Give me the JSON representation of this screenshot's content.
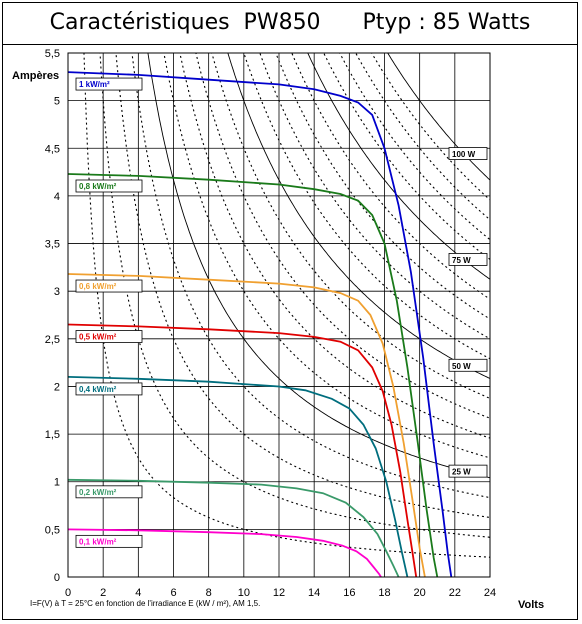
{
  "chart_data": {
    "type": "line",
    "title": "Caractéristiques  PW850      Ptyp : 85 Watts",
    "xlabel": "Volts",
    "ylabel": "Ampères",
    "footnote": "I=F(V) à T = 25°C  en fonction de l'irradiance E (kW / m²), AM 1,5.",
    "xlim": [
      0,
      24
    ],
    "ylim": [
      0,
      5.5
    ],
    "xticks": [
      0,
      2,
      4,
      6,
      8,
      10,
      12,
      14,
      16,
      18,
      20,
      22,
      24
    ],
    "xtick_labels": [
      "0",
      "2",
      "4",
      "6",
      "8",
      "10",
      "12",
      "14",
      "16",
      "18",
      "20",
      "22",
      "24"
    ],
    "yticks": [
      0,
      0.5,
      1,
      1.5,
      2,
      2.5,
      3,
      3.5,
      4,
      4.5,
      5,
      5.5
    ],
    "ytick_labels": [
      "0",
      "0,5",
      "1",
      "1,5",
      "2",
      "2,5",
      "3",
      "3,5",
      "4",
      "4,5",
      "5",
      "5,5"
    ],
    "grid": true,
    "series": [
      {
        "name": "1 kW/m²",
        "color": "#0000cc",
        "points": [
          [
            0,
            5.3
          ],
          [
            4,
            5.27
          ],
          [
            8,
            5.22
          ],
          [
            12,
            5.17
          ],
          [
            14,
            5.12
          ],
          [
            15.5,
            5.05
          ],
          [
            16.5,
            4.98
          ],
          [
            17.3,
            4.85
          ],
          [
            18,
            4.5
          ],
          [
            18.8,
            3.9
          ],
          [
            19.5,
            3.2
          ],
          [
            20.2,
            2.3
          ],
          [
            20.8,
            1.4
          ],
          [
            21.3,
            0.7
          ],
          [
            21.6,
            0.25
          ],
          [
            21.8,
            0
          ]
        ]
      },
      {
        "name": "0,8 kW/m²",
        "color": "#1a7a1a",
        "points": [
          [
            0,
            4.23
          ],
          [
            4,
            4.21
          ],
          [
            8,
            4.17
          ],
          [
            12,
            4.12
          ],
          [
            14,
            4.07
          ],
          [
            15.5,
            4.02
          ],
          [
            16.5,
            3.95
          ],
          [
            17.3,
            3.8
          ],
          [
            18,
            3.5
          ],
          [
            18.7,
            2.9
          ],
          [
            19.3,
            2.2
          ],
          [
            19.9,
            1.4
          ],
          [
            20.4,
            0.7
          ],
          [
            20.8,
            0.2
          ],
          [
            21,
            0
          ]
        ]
      },
      {
        "name": "0,6 kW/m²",
        "color": "#f0a030",
        "points": [
          [
            0,
            3.18
          ],
          [
            4,
            3.16
          ],
          [
            8,
            3.12
          ],
          [
            12,
            3.08
          ],
          [
            14,
            3.04
          ],
          [
            15.5,
            2.98
          ],
          [
            16.5,
            2.9
          ],
          [
            17.2,
            2.75
          ],
          [
            17.9,
            2.45
          ],
          [
            18.5,
            2.0
          ],
          [
            19.1,
            1.4
          ],
          [
            19.6,
            0.8
          ],
          [
            20,
            0.3
          ],
          [
            20.3,
            0
          ]
        ]
      },
      {
        "name": "0,5 kW/m²",
        "color": "#e00000",
        "points": [
          [
            0,
            2.65
          ],
          [
            4,
            2.63
          ],
          [
            8,
            2.6
          ],
          [
            12,
            2.56
          ],
          [
            14,
            2.52
          ],
          [
            15.5,
            2.47
          ],
          [
            16.5,
            2.38
          ],
          [
            17.3,
            2.2
          ],
          [
            17.9,
            1.95
          ],
          [
            18.4,
            1.6
          ],
          [
            18.9,
            1.1
          ],
          [
            19.3,
            0.6
          ],
          [
            19.6,
            0.25
          ],
          [
            19.8,
            0
          ]
        ]
      },
      {
        "name": "0,4 kW/m²",
        "color": "#006e7e",
        "points": [
          [
            0,
            2.1
          ],
          [
            4,
            2.08
          ],
          [
            8,
            2.05
          ],
          [
            12,
            2.0
          ],
          [
            13.5,
            1.96
          ],
          [
            15,
            1.87
          ],
          [
            16,
            1.77
          ],
          [
            16.8,
            1.6
          ],
          [
            17.5,
            1.35
          ],
          [
            18.1,
            1.0
          ],
          [
            18.6,
            0.6
          ],
          [
            19,
            0.25
          ],
          [
            19.3,
            0
          ]
        ]
      },
      {
        "name": "0,2 kW/m²",
        "color": "#3a9a6a",
        "points": [
          [
            0,
            1.02
          ],
          [
            4,
            1.01
          ],
          [
            8,
            0.99
          ],
          [
            11,
            0.97
          ],
          [
            13,
            0.93
          ],
          [
            14.5,
            0.88
          ],
          [
            15.8,
            0.78
          ],
          [
            16.8,
            0.63
          ],
          [
            17.6,
            0.45
          ],
          [
            18.1,
            0.27
          ],
          [
            18.5,
            0.12
          ],
          [
            18.8,
            0
          ]
        ]
      },
      {
        "name": "0,1 kW/m²",
        "color": "#ff00cc",
        "points": [
          [
            0,
            0.5
          ],
          [
            4,
            0.49
          ],
          [
            8,
            0.47
          ],
          [
            11,
            0.45
          ],
          [
            13,
            0.42
          ],
          [
            14.5,
            0.38
          ],
          [
            15.6,
            0.33
          ],
          [
            16.4,
            0.27
          ],
          [
            17,
            0.19
          ],
          [
            17.4,
            0.1
          ],
          [
            17.7,
            0.03
          ],
          [
            17.8,
            0
          ]
        ]
      }
    ],
    "power_curves": [
      {
        "label": "100 W",
        "watts": 100
      },
      {
        "label": "75 W",
        "watts": 75
      },
      {
        "label": "50 W",
        "watts": 50
      },
      {
        "label": "25 W",
        "watts": 25
      }
    ],
    "intermediate_power_watts": [
      5,
      10,
      15,
      20,
      30,
      35,
      40,
      45,
      55,
      60,
      65,
      70,
      80,
      85,
      90,
      95
    ]
  }
}
